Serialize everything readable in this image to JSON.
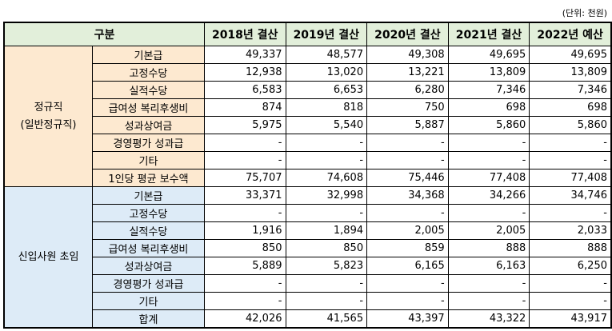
{
  "header": {
    "unit": "(단위: 천원)"
  },
  "table": {
    "header": [
      "구분",
      "2018년 결산",
      "2019년 결산",
      "2020년 결산",
      "2021년 결산",
      "2022년 예산"
    ],
    "groups": [
      {
        "label": [
          "정규직",
          "(일반정규직)"
        ],
        "rows": [
          {
            "item": "기본급",
            "values": [
              "49,337",
              "48,577",
              "49,308",
              "49,695",
              "49,695"
            ]
          },
          {
            "item": "고정수당",
            "values": [
              "12,938",
              "13,020",
              "13,221",
              "13,809",
              "13,809"
            ]
          },
          {
            "item": "실적수당",
            "values": [
              "6,583",
              "6,653",
              "6,280",
              "7,346",
              "7,346"
            ]
          },
          {
            "item": "급여성 복리후생비",
            "values": [
              "874",
              "818",
              "750",
              "698",
              "698"
            ]
          },
          {
            "item": "성과상여금",
            "values": [
              "5,975",
              "5,540",
              "5,887",
              "5,860",
              "5,860"
            ]
          },
          {
            "item": "경영평가 성과급",
            "values": [
              "-",
              "-",
              "-",
              "-",
              "-"
            ]
          },
          {
            "item": "기타",
            "values": [
              "-",
              "-",
              "-",
              "-",
              "-"
            ]
          },
          {
            "item": "1인당 평균 보수액",
            "values": [
              "75,707",
              "74,608",
              "75,446",
              "77,408",
              "77,408"
            ]
          }
        ]
      },
      {
        "label": [
          "신입사원 초임"
        ],
        "rows": [
          {
            "item": "기본급",
            "values": [
              "33,371",
              "32,998",
              "34,368",
              "34,266",
              "34,746"
            ]
          },
          {
            "item": "고정수당",
            "values": [
              "-",
              "-",
              "-",
              "-",
              "-"
            ]
          },
          {
            "item": "실적수당",
            "values": [
              "1,916",
              "1,894",
              "2,005",
              "2,005",
              "2,033"
            ]
          },
          {
            "item": "급여성 복리후생비",
            "values": [
              "850",
              "850",
              "859",
              "888",
              "888"
            ]
          },
          {
            "item": "성과상여금",
            "values": [
              "5,889",
              "5,823",
              "6,165",
              "6,163",
              "6,250"
            ]
          },
          {
            "item": "경영평가 성과급",
            "values": [
              "-",
              "-",
              "-",
              "-",
              "-"
            ]
          },
          {
            "item": "기타",
            "values": [
              "-",
              "-",
              "-",
              "-",
              "-"
            ]
          },
          {
            "item": "합계",
            "values": [
              "42,026",
              "41,565",
              "43,397",
              "43,322",
              "43,917"
            ]
          }
        ]
      }
    ]
  }
}
